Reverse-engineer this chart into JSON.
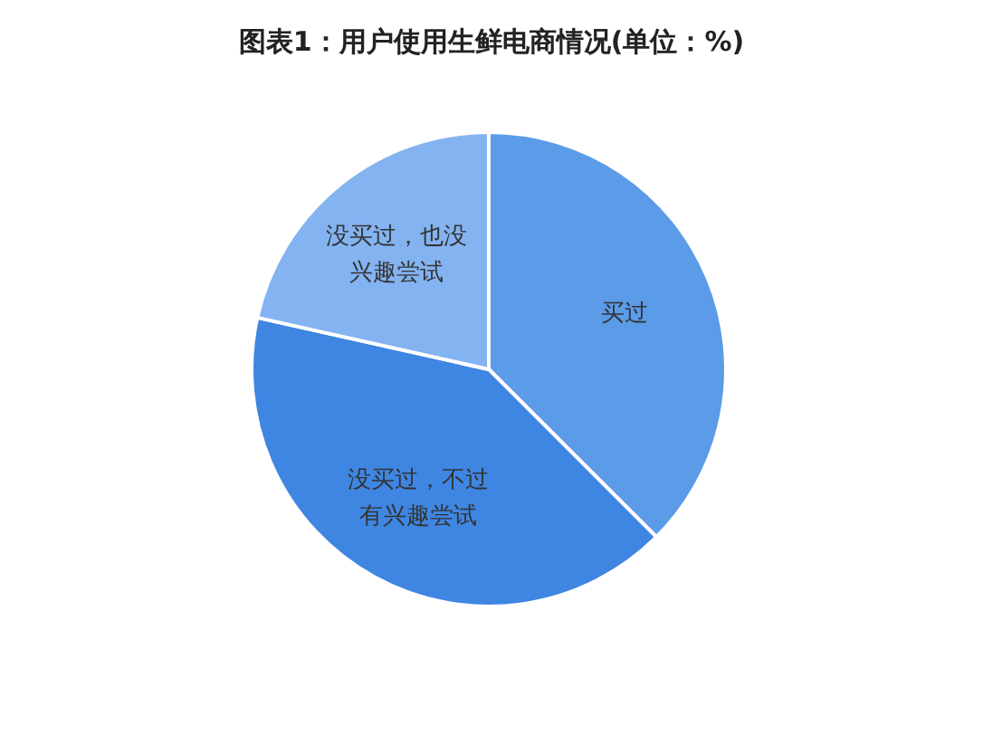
{
  "chart_data": {
    "type": "pie",
    "title": "图表1：用户使用生鲜电商情况(单位：%)",
    "categories": [
      "买过",
      "没买过，不过有兴趣尝试",
      "没买过，也没兴趣尝试"
    ],
    "values": [
      37.5,
      41,
      21.5
    ],
    "colors": [
      "#5b9be8",
      "#3f86e2",
      "#84b3f1"
    ]
  }
}
